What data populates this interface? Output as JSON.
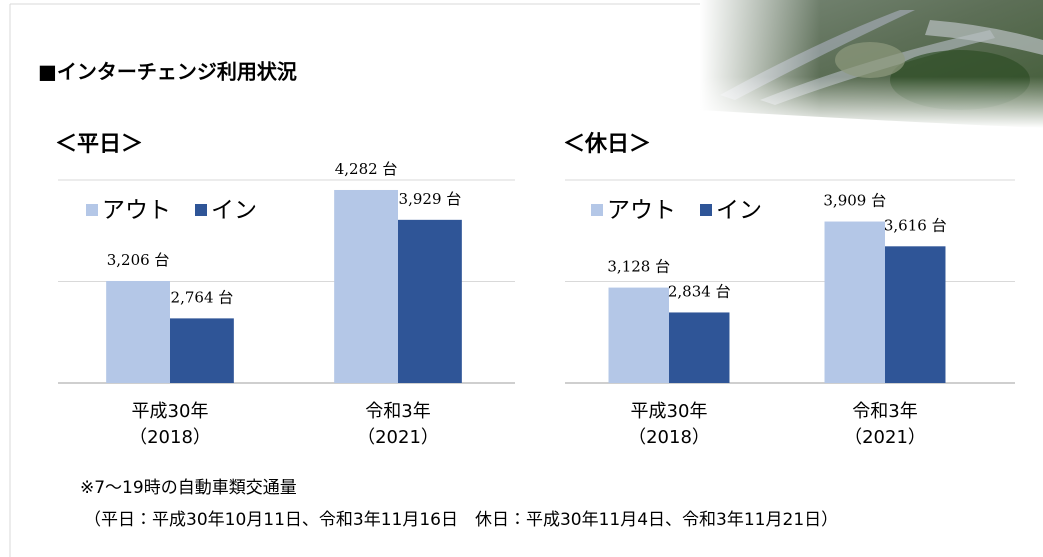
{
  "header": {
    "title": "■インターチェンジ利用状況"
  },
  "chart_data": [
    {
      "type": "bar",
      "title": "＜平日＞",
      "categories": [
        [
          "平成30年",
          "（2018）"
        ],
        [
          "令和3年",
          "（2021）"
        ]
      ],
      "series": [
        {
          "name": "アウト",
          "color": "#b4c7e7",
          "values": [
            3206,
            4282
          ],
          "value_labels": [
            "3,206 台",
            "4,282 台"
          ]
        },
        {
          "name": "イン",
          "color": "#2f5597",
          "values": [
            2764,
            3929
          ],
          "value_labels": [
            "2,764 台",
            "3,929 台"
          ]
        }
      ],
      "ylim": [
        2000,
        4400
      ],
      "yticks": [
        2000,
        3200,
        4400
      ],
      "grid": true,
      "legend": "top-left"
    },
    {
      "type": "bar",
      "title": "＜休日＞",
      "categories": [
        [
          "平成30年",
          "（2018）"
        ],
        [
          "令和3年",
          "（2021）"
        ]
      ],
      "series": [
        {
          "name": "アウト",
          "color": "#b4c7e7",
          "values": [
            3128,
            3909
          ],
          "value_labels": [
            "3,128 台",
            "3,909 台"
          ]
        },
        {
          "name": "イン",
          "color": "#2f5597",
          "values": [
            2834,
            3616
          ],
          "value_labels": [
            "2,834 台",
            "3,616 台"
          ]
        }
      ],
      "ylim": [
        2000,
        4400
      ],
      "yticks": [
        2000,
        3200,
        4400
      ],
      "grid": true,
      "legend": "top-left"
    }
  ],
  "notes": [
    "※7～19時の自動車類交通量",
    "（平日：平成30年10月11日、令和3年11月16日　休日：平成30年11月4日、令和3年11月21日）"
  ]
}
